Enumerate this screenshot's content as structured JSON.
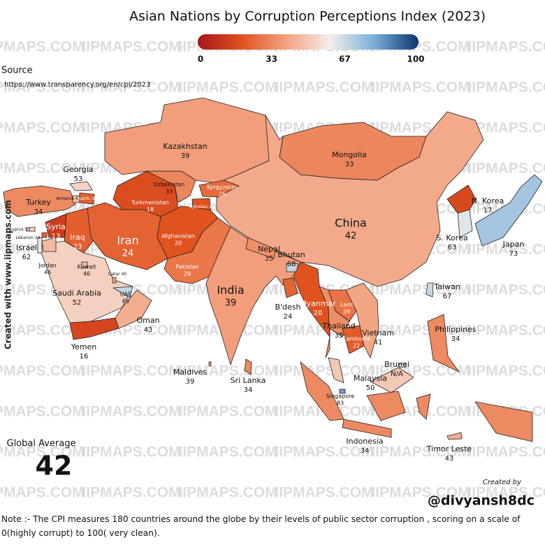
{
  "title": "Asian Nations by Corruption Perceptions Index (2023)",
  "colorscale": {
    "lim": [
      0,
      100
    ],
    "ticks": [
      0,
      33,
      67,
      100
    ],
    "colors": [
      "#a8141b",
      "#e0531f",
      "#f3a27f",
      "#f3eeeb",
      "#7aaed8",
      "#0a3570"
    ]
  },
  "source_label": "Source",
  "source_url": "https://www.transparency.org/en/cpi/2023",
  "watermark": "IIPMAPS.COM",
  "side_credit": "Created with www.iipmaps.com",
  "global_average_label": "Global Average",
  "global_average": 42,
  "created_by_label": "Created by",
  "author": "@divyansh8dc",
  "note": "Note :- The CPI measures 180 countries around the globe by their levels of public sector corruption , scoring on a scale of 0(highly corrupt) to 100( very clean).",
  "countries": [
    {
      "name": "Kazakhstan",
      "value": 39
    },
    {
      "name": "Mongolia",
      "value": 33
    },
    {
      "name": "China",
      "value": 42
    },
    {
      "name": "Georgia",
      "value": 53
    },
    {
      "name": "Turkey",
      "value": 34
    },
    {
      "name": "Armenia",
      "value": 47
    },
    {
      "name": "Azerb.",
      "value": 23
    },
    {
      "name": "Syria",
      "value": 13
    },
    {
      "name": "Iraq",
      "value": 23
    },
    {
      "name": "Iran",
      "value": 24
    },
    {
      "name": "Turkmenistan",
      "value": 18
    },
    {
      "name": "Uzbekistan",
      "value": 33
    },
    {
      "name": "Kyrgyzstan",
      "value": 26
    },
    {
      "name": "Tajikistan",
      "value": 20
    },
    {
      "name": "Afghanistan",
      "value": 20
    },
    {
      "name": "Pakistan",
      "value": 29
    },
    {
      "name": "India",
      "value": 39
    },
    {
      "name": "Nepal",
      "value": 35
    },
    {
      "name": "Bhutan",
      "value": 68
    },
    {
      "name": "B'desh",
      "value": 24
    },
    {
      "name": "Myanmar",
      "value": 20
    },
    {
      "name": "Laos",
      "value": 28
    },
    {
      "name": "Thailand",
      "value": 35
    },
    {
      "name": "Cambodia",
      "value": 22
    },
    {
      "name": "Vietnam",
      "value": 41
    },
    {
      "name": "Malaysia",
      "value": 50
    },
    {
      "name": "Singapore",
      "value": 83
    },
    {
      "name": "Brunei",
      "value": null,
      "value_label": "N/A"
    },
    {
      "name": "Indonesia",
      "value": 34
    },
    {
      "name": "Timor Leste",
      "value": 43
    },
    {
      "name": "Philippines",
      "value": 34
    },
    {
      "name": "Taiwan",
      "value": 67
    },
    {
      "name": "Japan",
      "value": 73
    },
    {
      "name": "S. Korea",
      "value": 63
    },
    {
      "name": "N. Korea",
      "value": 17
    },
    {
      "name": "Saudi Arabia",
      "value": 52
    },
    {
      "name": "Yemen",
      "value": 16
    },
    {
      "name": "Oman",
      "value": 43
    },
    {
      "name": "UAE",
      "value": 68
    },
    {
      "name": "Qatar",
      "value": 40
    },
    {
      "name": "Kuwait",
      "value": 46
    },
    {
      "name": "Jordan",
      "value": 46
    },
    {
      "name": "Israel",
      "value": 62
    },
    {
      "name": "Lebanon",
      "value": 24
    },
    {
      "name": "Cyprus",
      "value": 53
    },
    {
      "name": "Sri Lanka",
      "value": 34
    },
    {
      "name": "Maldives",
      "value": 39
    }
  ]
}
